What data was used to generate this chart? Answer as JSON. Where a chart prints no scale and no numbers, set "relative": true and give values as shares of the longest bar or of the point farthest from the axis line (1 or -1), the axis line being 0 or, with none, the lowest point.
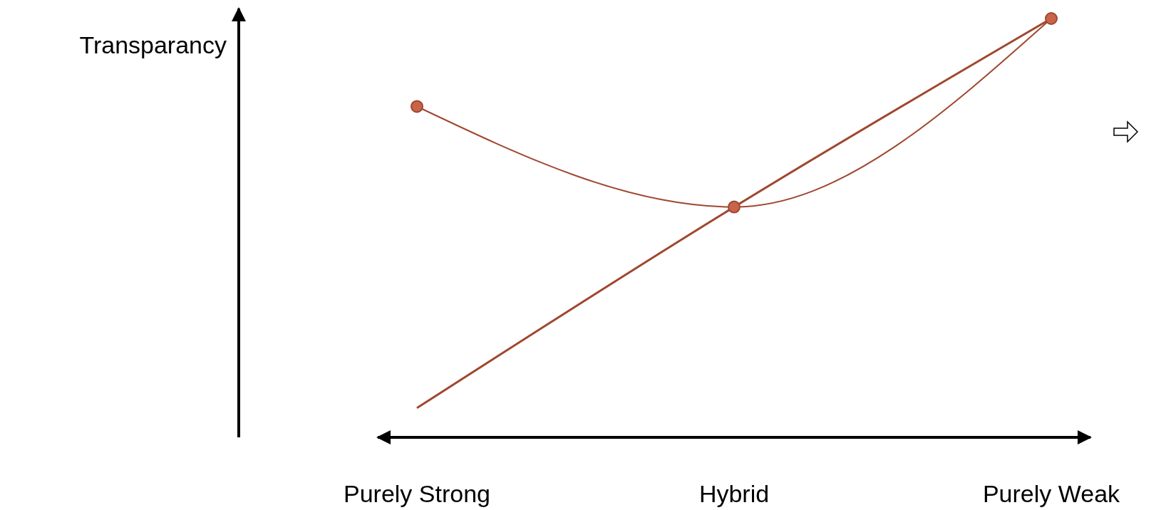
{
  "chart_data": {
    "type": "line",
    "relative": true,
    "ylabel": "Transparancy",
    "categories": [
      "Purely Strong",
      "Hybrid",
      "Purely Weak"
    ],
    "series": [
      {
        "color": "#a0472f",
        "values": [
          0.79,
          0.55,
          1
        ],
        "marker": "circle"
      },
      {
        "color": "#a0472f",
        "values": [
          0.07,
          0.55,
          1
        ],
        "marker": "none"
      }
    ],
    "grid": false
  }
}
